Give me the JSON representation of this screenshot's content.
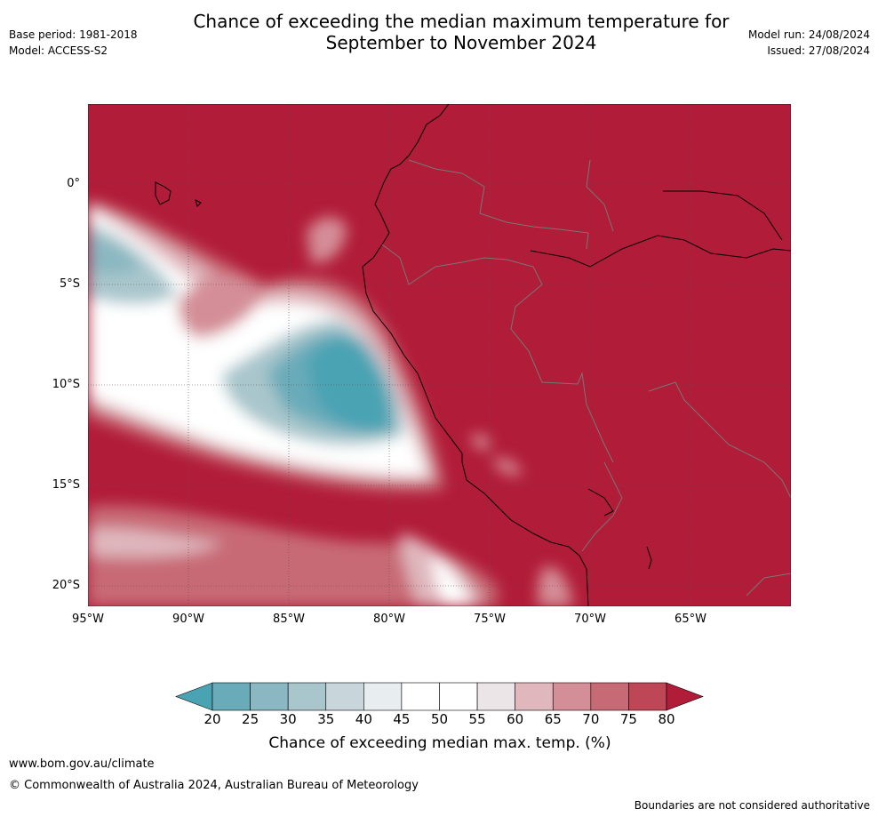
{
  "title_line1": "Chance of exceeding the median maximum temperature for",
  "title_line2": "September to November 2024",
  "base_period": "Base period: 1981-2018",
  "model": "Model: ACCESS-S2",
  "model_run": "Model run: 24/08/2024",
  "issued": "Issued: 27/08/2024",
  "lat_labels": [
    "0°",
    "5°S",
    "10°S",
    "15°S",
    "20°S"
  ],
  "lon_labels": [
    "95°W",
    "90°W",
    "85°W",
    "80°W",
    "75°W",
    "70°W",
    "65°W"
  ],
  "colorbar": {
    "ticks": [
      "20",
      "25",
      "30",
      "35",
      "40",
      "45",
      "50",
      "55",
      "60",
      "65",
      "70",
      "75",
      "80"
    ],
    "colors": [
      "#4aa3b3",
      "#6aabba",
      "#8ab7c1",
      "#a9c6cc",
      "#c8d6db",
      "#e8eef0",
      "#ffffff",
      "#ffffff",
      "#ebe5e7",
      "#dfb7bd",
      "#d48e97",
      "#c86a76",
      "#bd4756",
      "#b11c38"
    ],
    "title": "Chance of exceeding median max. temp. (%)"
  },
  "website": "www.bom.gov.au/climate",
  "copyright": "© Commonwealth of Australia 2024, Australian Bureau of Meteorology",
  "disclaimer": "Boundaries are not considered authoritative"
}
